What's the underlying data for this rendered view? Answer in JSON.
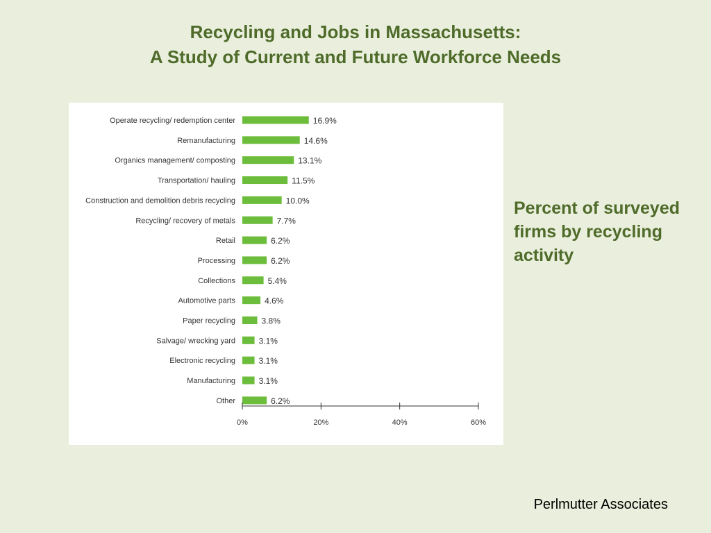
{
  "title": {
    "line1": "Recycling and Jobs in Massachusetts:",
    "line2": "A Study of Current and Future Workforce Needs"
  },
  "side_note": "Percent of surveyed firms by recycling activity",
  "credit": "Perlmutter Associates",
  "colors": {
    "background": "#e9efdc",
    "title": "#4f6b2a",
    "bar": "#6cbd3b"
  },
  "chart_data": {
    "type": "bar",
    "orientation": "horizontal",
    "categories": [
      "Operate recycling/ redemption center",
      "Remanufacturing",
      "Organics management/ composting",
      "Transportation/ hauling",
      "Construction and demolition debris recycling",
      "Recycling/ recovery of metals",
      "Retail",
      "Processing",
      "Collections",
      "Automotive parts",
      "Paper recycling",
      "Salvage/ wrecking yard",
      "Electronic recycling",
      "Manufacturing",
      "Other"
    ],
    "values": [
      16.9,
      14.6,
      13.1,
      11.5,
      10.0,
      7.7,
      6.2,
      6.2,
      5.4,
      4.6,
      3.8,
      3.1,
      3.1,
      3.1,
      6.2
    ],
    "value_labels": [
      "16.9%",
      "14.6%",
      "13.1%",
      "11.5%",
      "10.0%",
      "7.7%",
      "6.2%",
      "6.2%",
      "5.4%",
      "4.6%",
      "3.8%",
      "3.1%",
      "3.1%",
      "3.1%",
      "6.2%"
    ],
    "x_ticks": [
      0,
      20,
      40,
      60
    ],
    "x_tick_labels": [
      "0%",
      "20%",
      "40%",
      "60%"
    ],
    "xlim": [
      0,
      60
    ],
    "grid": false,
    "legend": "none"
  }
}
